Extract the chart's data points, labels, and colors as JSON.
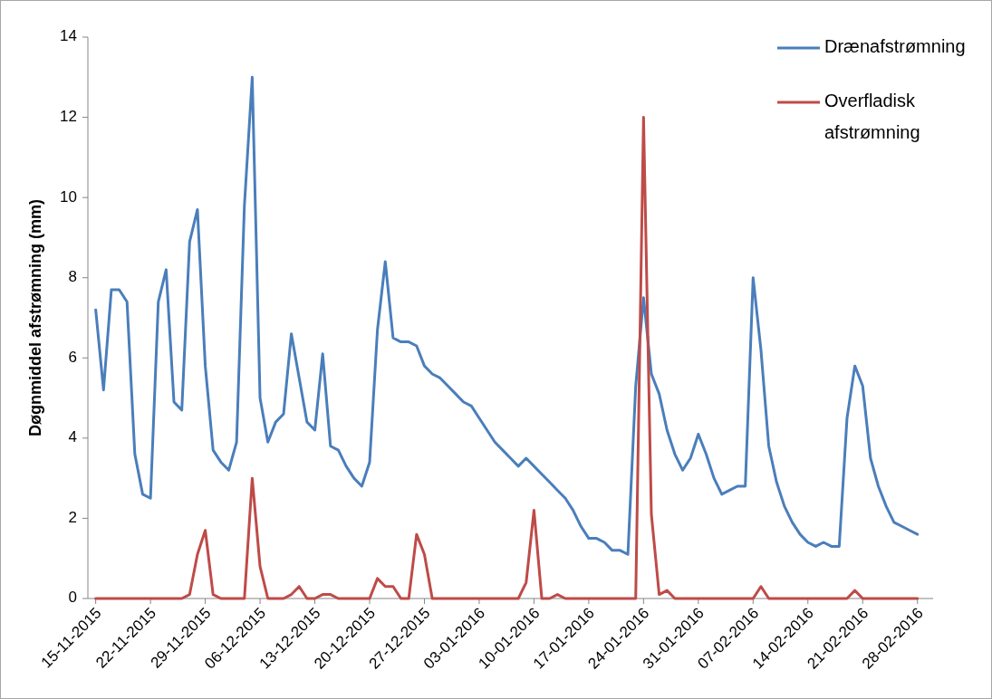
{
  "chart_data": {
    "type": "line",
    "ylabel": "Døgnmiddel afstrømning (mm)",
    "x": [
      "2015-11-15",
      "2015-11-16",
      "2015-11-17",
      "2015-11-18",
      "2015-11-19",
      "2015-11-20",
      "2015-11-21",
      "2015-11-22",
      "2015-11-23",
      "2015-11-24",
      "2015-11-25",
      "2015-11-26",
      "2015-11-27",
      "2015-11-28",
      "2015-11-29",
      "2015-11-30",
      "2015-12-01",
      "2015-12-02",
      "2015-12-03",
      "2015-12-04",
      "2015-12-05",
      "2015-12-06",
      "2015-12-07",
      "2015-12-08",
      "2015-12-09",
      "2015-12-10",
      "2015-12-11",
      "2015-12-12",
      "2015-12-13",
      "2015-12-14",
      "2015-12-15",
      "2015-12-16",
      "2015-12-17",
      "2015-12-18",
      "2015-12-19",
      "2015-12-20",
      "2015-12-21",
      "2015-12-22",
      "2015-12-23",
      "2015-12-24",
      "2015-12-25",
      "2015-12-26",
      "2015-12-27",
      "2015-12-28",
      "2015-12-29",
      "2015-12-30",
      "2015-12-31",
      "2016-01-01",
      "2016-01-02",
      "2016-01-03",
      "2016-01-04",
      "2016-01-05",
      "2016-01-06",
      "2016-01-07",
      "2016-01-08",
      "2016-01-09",
      "2016-01-10",
      "2016-01-11",
      "2016-01-12",
      "2016-01-13",
      "2016-01-14",
      "2016-01-15",
      "2016-01-16",
      "2016-01-17",
      "2016-01-18",
      "2016-01-19",
      "2016-01-20",
      "2016-01-21",
      "2016-01-22",
      "2016-01-23",
      "2016-01-24",
      "2016-01-25",
      "2016-01-26",
      "2016-01-27",
      "2016-01-28",
      "2016-01-29",
      "2016-01-30",
      "2016-01-31",
      "2016-02-01",
      "2016-02-02",
      "2016-02-03",
      "2016-02-04",
      "2016-02-05",
      "2016-02-06",
      "2016-02-07",
      "2016-02-08",
      "2016-02-09",
      "2016-02-10",
      "2016-02-11",
      "2016-02-12",
      "2016-02-13",
      "2016-02-14",
      "2016-02-15",
      "2016-02-16",
      "2016-02-17",
      "2016-02-18",
      "2016-02-19",
      "2016-02-20",
      "2016-02-21",
      "2016-02-22",
      "2016-02-23",
      "2016-02-24",
      "2016-02-25",
      "2016-02-26",
      "2016-02-27",
      "2016-02-28"
    ],
    "series": [
      {
        "name": "Drænafstrømning",
        "color": "#4a7ebb",
        "values": [
          7.2,
          5.2,
          7.7,
          7.7,
          7.4,
          3.6,
          2.6,
          2.5,
          7.4,
          8.2,
          4.9,
          4.7,
          8.9,
          9.7,
          5.8,
          3.7,
          3.4,
          3.2,
          3.9,
          9.8,
          13.0,
          5.0,
          3.9,
          4.4,
          4.6,
          6.6,
          5.5,
          4.4,
          4.2,
          6.1,
          3.8,
          3.7,
          3.3,
          3.0,
          2.8,
          3.4,
          6.7,
          8.4,
          6.5,
          6.4,
          6.4,
          6.3,
          5.8,
          5.6,
          5.5,
          5.3,
          5.1,
          4.9,
          4.8,
          4.5,
          4.2,
          3.9,
          3.7,
          3.5,
          3.3,
          3.5,
          3.3,
          3.1,
          2.9,
          2.7,
          2.5,
          2.2,
          1.8,
          1.5,
          1.5,
          1.4,
          1.2,
          1.2,
          1.1,
          5.3,
          7.5,
          5.6,
          5.1,
          4.2,
          3.6,
          3.2,
          3.5,
          4.1,
          3.6,
          3.0,
          2.6,
          2.7,
          2.8,
          2.8,
          8.0,
          6.2,
          3.8,
          2.9,
          2.3,
          1.9,
          1.6,
          1.4,
          1.3,
          1.4,
          1.3,
          1.3,
          4.5,
          5.8,
          5.3,
          3.5,
          2.8,
          2.3,
          1.9,
          1.8,
          1.7,
          1.6
        ]
      },
      {
        "name": "Overfladisk afstrømning",
        "color": "#be4b48",
        "values": [
          0,
          0,
          0,
          0,
          0,
          0,
          0,
          0,
          0,
          0,
          0,
          0,
          0.1,
          1.1,
          1.7,
          0.1,
          0,
          0,
          0,
          0,
          3.0,
          0.8,
          0,
          0,
          0,
          0.1,
          0.3,
          0,
          0,
          0.1,
          0.1,
          0,
          0,
          0,
          0,
          0,
          0.5,
          0.3,
          0.3,
          0,
          0,
          1.6,
          1.1,
          0,
          0,
          0,
          0,
          0,
          0,
          0,
          0,
          0,
          0,
          0,
          0,
          0.4,
          2.2,
          0,
          0,
          0.1,
          0,
          0,
          0,
          0,
          0,
          0,
          0,
          0,
          0,
          0,
          12.0,
          2.1,
          0.1,
          0.2,
          0,
          0,
          0,
          0,
          0,
          0,
          0,
          0,
          0,
          0,
          0,
          0.3,
          0,
          0,
          0,
          0,
          0,
          0,
          0,
          0,
          0,
          0,
          0,
          0.2,
          0,
          0,
          0,
          0,
          0,
          0,
          0,
          0
        ]
      }
    ],
    "xlim": [
      "2015-11-14",
      "2016-03-01"
    ],
    "xticks": [
      {
        "value": "2015-11-15",
        "label": "15-11-2015"
      },
      {
        "value": "2015-11-22",
        "label": "22-11-2015"
      },
      {
        "value": "2015-11-29",
        "label": "29-11-2015"
      },
      {
        "value": "2015-12-06",
        "label": "06-12-2015"
      },
      {
        "value": "2015-12-13",
        "label": "13-12-2015"
      },
      {
        "value": "2015-12-20",
        "label": "20-12-2015"
      },
      {
        "value": "2015-12-27",
        "label": "27-12-2015"
      },
      {
        "value": "2016-01-03",
        "label": "03-01-2016"
      },
      {
        "value": "2016-01-10",
        "label": "10-01-2016"
      },
      {
        "value": "2016-01-17",
        "label": "17-01-2016"
      },
      {
        "value": "2016-01-24",
        "label": "24-01-2016"
      },
      {
        "value": "2016-01-31",
        "label": "31-01-2016"
      },
      {
        "value": "2016-02-07",
        "label": "07-02-2016"
      },
      {
        "value": "2016-02-14",
        "label": "14-02-2016"
      },
      {
        "value": "2016-02-21",
        "label": "21-02-2016"
      },
      {
        "value": "2016-02-28",
        "label": "28-02-2016"
      }
    ],
    "ylim": [
      0,
      14
    ],
    "yticks": [
      0,
      2,
      4,
      6,
      8,
      10,
      12,
      14
    ],
    "grid": false,
    "legend": "top right",
    "marker": "none",
    "line_style": "solid"
  }
}
